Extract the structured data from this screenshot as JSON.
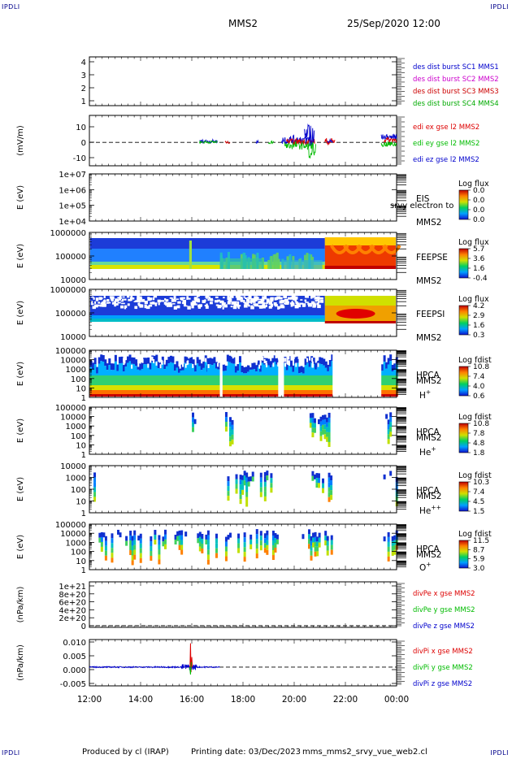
{
  "corners": {
    "tl": "IPDLI",
    "tr": "IPDLI",
    "bl": "IPDLI",
    "br": "IPDLI"
  },
  "header": {
    "title": "MMS2",
    "datetime": "25/Sep/2020 12:00"
  },
  "footer": {
    "produced": "Produced by cl (IRAP)",
    "printing": "Printing date: 03/Dec/2023",
    "file": "mms_mms2_srvy_vue_web2.cl"
  },
  "colors": {
    "mms1": "#0000cc",
    "mms2": "#cc00cc",
    "mms3": "#cc0000",
    "mms4": "#00aa00",
    "x": "#dd0000",
    "y": "#00bb00",
    "z": "#0000cc"
  },
  "chart_data": [
    {
      "type": "line",
      "id": "sc",
      "ylim": [
        1,
        4.5
      ],
      "ticks": [
        "4",
        "3",
        "2",
        "1"
      ],
      "legend": [
        "des dist burst SC1 MMS1",
        "des dist burst SC2 MMS2",
        "des dist burst SC3 MMS3",
        "des dist burst SC4 MMS4"
      ]
    },
    {
      "type": "line",
      "id": "edi",
      "ylabel": "(mV/m)",
      "ylim": [
        -13,
        15
      ],
      "ticks": [
        "10",
        "0",
        "-10"
      ],
      "legend": [
        "edi ex gse l2 MMS2",
        "edi ey gse l2 MMS2",
        "edi ez gse l2 MMS2"
      ]
    },
    {
      "type": "heatmap",
      "id": "eis",
      "ylabel": "E (eV)",
      "ticks": [
        "1e+07",
        "1e+06",
        "1e+05",
        "1e+04"
      ],
      "label": [
        "EIS",
        "MMS2"
      ],
      "overlay": "srvy electron to",
      "cbar_title": "Log flux",
      "cbar_ticks": [
        "0.0",
        "0.0",
        "0.0",
        "0.0"
      ]
    },
    {
      "type": "heatmap",
      "id": "feepse",
      "ylabel": "E (eV)",
      "ticks": [
        "1000000",
        "100000",
        "10000"
      ],
      "label": [
        "FEEPSE",
        "MMS2"
      ],
      "cbar_title": "Log flux",
      "cbar_ticks": [
        "5.7",
        "3.6",
        "1.6",
        "-0.4"
      ]
    },
    {
      "type": "heatmap",
      "id": "feepsi",
      "ylabel": "E (eV)",
      "ticks": [
        "1000000",
        "100000",
        "10000"
      ],
      "label": [
        "FEEPSI",
        "MMS2"
      ],
      "cbar_title": "Log flux",
      "cbar_ticks": [
        "4.2",
        "2.9",
        "1.6",
        "0.3"
      ]
    },
    {
      "type": "heatmap",
      "id": "hpca_h",
      "ylabel": "E (eV)",
      "ticks": [
        "100000",
        "10000",
        "1000",
        "100",
        "10",
        "1"
      ],
      "label": [
        "HPCA",
        "MMS2"
      ],
      "species": "H",
      "species_sup": "+",
      "cbar_title": "Log fdist",
      "cbar_ticks": [
        "10.8",
        "7.4",
        "4.0",
        "0.6"
      ]
    },
    {
      "type": "heatmap",
      "id": "hpca_he",
      "ylabel": "E (eV)",
      "ticks": [
        "100000",
        "10000",
        "1000",
        "100",
        "10",
        "1"
      ],
      "label": [
        "HPCA",
        "MMS2"
      ],
      "species": "He",
      "species_sup": "+",
      "cbar_title": "Log fdist",
      "cbar_ticks": [
        "10.8",
        "7.8",
        "4.8",
        "1.8"
      ]
    },
    {
      "type": "heatmap",
      "id": "hpca_he2",
      "ylabel": "E (eV)",
      "ticks": [
        "10000",
        "1000",
        "100",
        "10",
        "1"
      ],
      "label": [
        "HPCA",
        "MMS2"
      ],
      "species": "He",
      "species_sup": "++",
      "cbar_title": "Log fdist",
      "cbar_ticks": [
        "10.3",
        "7.4",
        "4.5",
        "1.5"
      ]
    },
    {
      "type": "heatmap",
      "id": "hpca_o",
      "ylabel": "E (eV)",
      "ticks": [
        "100000",
        "10000",
        "1000",
        "100",
        "10",
        "1"
      ],
      "label": [
        "HPCA",
        "MMS2"
      ],
      "species": "O",
      "species_sup": "+",
      "cbar_title": "Log fdist",
      "cbar_ticks": [
        "11.5",
        "8.7",
        "5.9",
        "3.0"
      ]
    },
    {
      "type": "line",
      "id": "divpe",
      "ylabel": "(nPa/km)",
      "ticks": [
        "1e+21",
        "8e+20",
        "6e+20",
        "4e+20",
        "2e+20",
        "0"
      ],
      "legend": [
        "divPe x gse MMS2",
        "divPe y gse MMS2",
        "divPe z gse MMS2"
      ]
    },
    {
      "type": "line",
      "id": "divpi",
      "ylabel": "(nPa/km)",
      "ylim": [
        -0.0075,
        0.011
      ],
      "ticks": [
        "0.010",
        "0.005",
        "0.000",
        "-0.005"
      ],
      "legend": [
        "divPi x gse MMS2",
        "divPi y gse MMS2",
        "divPi z gse MMS2"
      ]
    }
  ],
  "xaxis": {
    "ticks": [
      "12:00",
      "14:00",
      "16:00",
      "18:00",
      "20:00",
      "22:00",
      "00:00"
    ],
    "range_hours": [
      12,
      24
    ]
  }
}
